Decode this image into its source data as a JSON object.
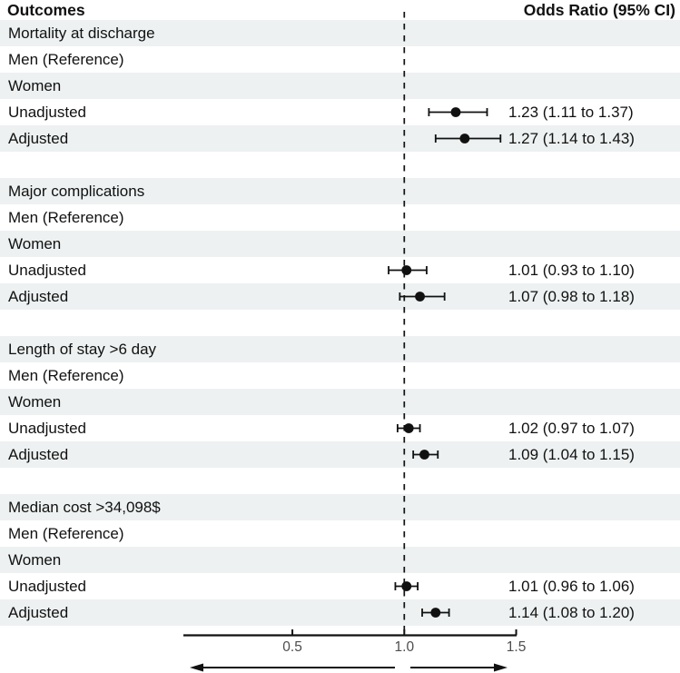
{
  "header": {
    "left": "Outcomes",
    "right": "Odds Ratio (95% CI)"
  },
  "colors": {
    "stripe": "#edf1f1",
    "text": "#111111",
    "line": "#111111",
    "tick_text": "#4d4d4d",
    "background": "#ffffff"
  },
  "chart_data": {
    "type": "forest",
    "title": "",
    "left_column_header": "Outcomes",
    "right_column_header": "Odds Ratio (95% CI)",
    "x_axis": {
      "scale": "linear",
      "tick_values": [
        0.5,
        1.0,
        1.5
      ],
      "tick_labels": [
        "0.5",
        "1.0",
        "1.5"
      ],
      "reference_line": 1.0,
      "reference_line_style": "dashed",
      "direction_arrows": {
        "left_of_reference": true,
        "right_of_reference": true
      }
    },
    "rows": [
      {
        "label": "Mortality at discharge",
        "type": "heading",
        "shaded": true
      },
      {
        "label": "Men (Reference)",
        "type": "label",
        "shaded": false
      },
      {
        "label": "Women",
        "type": "label",
        "shaded": true
      },
      {
        "label": "Unadjusted",
        "type": "estimate",
        "shaded": false,
        "or": 1.23,
        "ci_low": 1.11,
        "ci_high": 1.37,
        "display": "1.23 (1.11 to 1.37)"
      },
      {
        "label": "Adjusted",
        "type": "estimate",
        "shaded": true,
        "or": 1.27,
        "ci_low": 1.14,
        "ci_high": 1.43,
        "display": "1.27 (1.14 to 1.43)"
      },
      {
        "label": "",
        "type": "spacer",
        "shaded": false
      },
      {
        "label": "Major complications",
        "type": "heading",
        "shaded": true
      },
      {
        "label": "Men (Reference)",
        "type": "label",
        "shaded": false
      },
      {
        "label": "Women",
        "type": "label",
        "shaded": true
      },
      {
        "label": "Unadjusted",
        "type": "estimate",
        "shaded": false,
        "or": 1.01,
        "ci_low": 0.93,
        "ci_high": 1.1,
        "display": "1.01 (0.93 to 1.10)"
      },
      {
        "label": "Adjusted",
        "type": "estimate",
        "shaded": true,
        "or": 1.07,
        "ci_low": 0.98,
        "ci_high": 1.18,
        "display": "1.07 (0.98 to 1.18)"
      },
      {
        "label": "",
        "type": "spacer",
        "shaded": false
      },
      {
        "label": "Length of stay >6 day",
        "type": "heading",
        "shaded": true
      },
      {
        "label": "Men (Reference)",
        "type": "label",
        "shaded": false
      },
      {
        "label": "Women",
        "type": "label",
        "shaded": true
      },
      {
        "label": "Unadjusted",
        "type": "estimate",
        "shaded": false,
        "or": 1.02,
        "ci_low": 0.97,
        "ci_high": 1.07,
        "display": "1.02 (0.97 to 1.07)"
      },
      {
        "label": "Adjusted",
        "type": "estimate",
        "shaded": true,
        "or": 1.09,
        "ci_low": 1.04,
        "ci_high": 1.15,
        "display": "1.09 (1.04 to 1.15)"
      },
      {
        "label": "",
        "type": "spacer",
        "shaded": false
      },
      {
        "label": "Median cost >34,098$",
        "type": "heading",
        "shaded": true
      },
      {
        "label": "Men (Reference)",
        "type": "label",
        "shaded": false
      },
      {
        "label": "Women",
        "type": "label",
        "shaded": true
      },
      {
        "label": "Unadjusted",
        "type": "estimate",
        "shaded": false,
        "or": 1.01,
        "ci_low": 0.96,
        "ci_high": 1.06,
        "display": "1.01 (0.96 to 1.06)"
      },
      {
        "label": "Adjusted",
        "type": "estimate",
        "shaded": true,
        "or": 1.14,
        "ci_low": 1.08,
        "ci_high": 1.2,
        "display": "1.14 (1.08 to 1.20)"
      }
    ]
  }
}
